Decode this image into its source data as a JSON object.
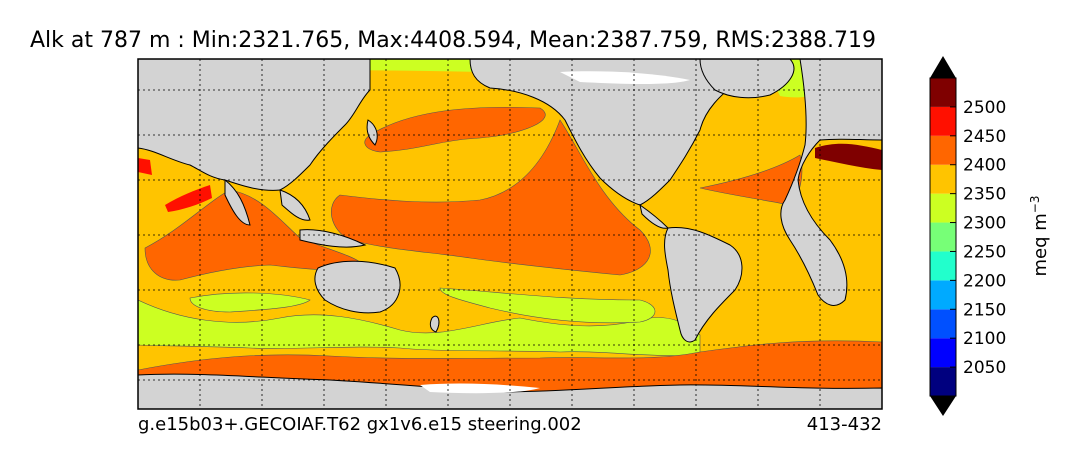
{
  "figure": {
    "title": "Alk at 787 m : Min:2321.765, Max:4408.594, Mean:2387.759, RMS:2388.719",
    "footer_left": "g.e15b03+.GECOIAF.T62 gx1v6.e15 steering.002",
    "footer_right": "413-432"
  },
  "colorbar": {
    "label": "meq m",
    "label_sup": "−3",
    "ticks": [
      "2050",
      "2100",
      "2150",
      "2200",
      "2250",
      "2300",
      "2350",
      "2400",
      "2450",
      "2500"
    ],
    "colors": [
      "#00007f",
      "#0000ff",
      "#0050ff",
      "#00aaff",
      "#22ffcc",
      "#77ff77",
      "#ccff22",
      "#ffc400",
      "#ff6600",
      "#ff1000",
      "#7f0000"
    ],
    "extend": "both"
  },
  "map": {
    "projection": "cylindrical, Pacific-centred",
    "grid": "dashed",
    "land_color": "#d3d3d3",
    "ice_color": "#ffffff"
  }
}
